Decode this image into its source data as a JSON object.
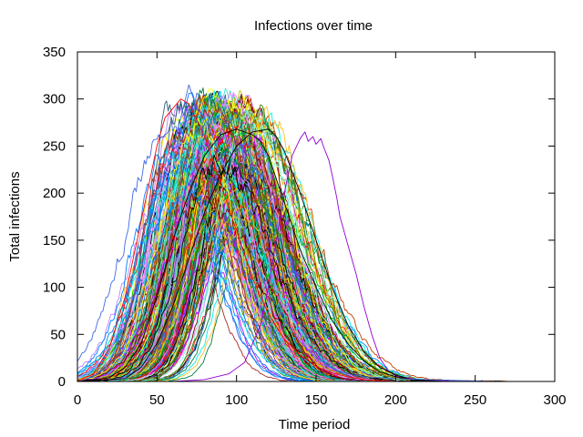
{
  "chart_data": {
    "type": "line",
    "title": "Infections over time",
    "xlabel": "Time period",
    "ylabel": "Total infections",
    "xlim": [
      0,
      300
    ],
    "ylim": [
      0,
      350
    ],
    "xticks": [
      0,
      50,
      100,
      150,
      200,
      250,
      300
    ],
    "yticks": [
      0,
      50,
      100,
      150,
      200,
      250,
      300,
      350
    ],
    "grid": false,
    "legend": "none",
    "palette": [
      "#ff0000",
      "#00c000",
      "#0080ff",
      "#c000ff",
      "#00eeee",
      "#c04000",
      "#c8c800",
      "#4169e1",
      "#ffc020",
      "#008040",
      "#c080ff",
      "#306080",
      "#8b0000",
      "#408000",
      "#ff80ff",
      "#7fffd4",
      "#a52a2a",
      "#ffff00",
      "#40e0d0",
      "#000000"
    ],
    "ensemble_summary": {
      "count": 320,
      "peak_time_range": [
        48,
        128
      ],
      "peak_value_range": [
        185,
        315
      ],
      "end_time_range": [
        150,
        275
      ]
    },
    "series": [
      {
        "name": "",
        "color": "#9400d3",
        "x": [
          0,
          60,
          80,
          95,
          105,
          115,
          120,
          125,
          130,
          135,
          140,
          143,
          145,
          148,
          150,
          153,
          155,
          158,
          160,
          163,
          165,
          170,
          175,
          180,
          185,
          190,
          195,
          200,
          210,
          220,
          240
        ],
        "y": [
          0,
          0,
          2,
          8,
          20,
          60,
          100,
          150,
          200,
          240,
          258,
          265,
          255,
          260,
          252,
          258,
          248,
          235,
          220,
          195,
          175,
          145,
          115,
          80,
          50,
          25,
          12,
          6,
          3,
          1,
          0
        ]
      },
      {
        "name": "",
        "color": "#000000",
        "x": [
          0,
          20,
          30,
          40,
          50,
          60,
          70,
          80,
          90,
          100,
          110,
          115,
          120,
          130,
          140,
          150,
          160,
          170,
          180,
          190,
          200,
          210,
          220,
          230
        ],
        "y": [
          0,
          4,
          15,
          40,
          90,
          150,
          200,
          240,
          262,
          268,
          262,
          255,
          240,
          190,
          140,
          100,
          65,
          40,
          22,
          10,
          5,
          2,
          1,
          0
        ]
      },
      {
        "name": "",
        "color": "#000000",
        "x": [
          0,
          30,
          40,
          50,
          60,
          70,
          80,
          90,
          100,
          110,
          120,
          125,
          130,
          140,
          150,
          160,
          170,
          180,
          190,
          200,
          210,
          220
        ],
        "y": [
          0,
          3,
          15,
          40,
          80,
          130,
          180,
          220,
          250,
          265,
          268,
          260,
          245,
          200,
          150,
          100,
          60,
          32,
          15,
          7,
          2,
          0
        ]
      },
      {
        "name": "",
        "color": "#4169e1",
        "x": [
          0,
          10,
          20,
          30,
          40,
          50,
          60,
          65,
          70,
          75,
          80,
          90,
          100,
          110,
          120,
          130,
          140,
          150,
          160,
          170,
          180,
          200,
          220,
          240,
          260
        ],
        "y": [
          0,
          5,
          20,
          60,
          120,
          190,
          250,
          280,
          315,
          290,
          280,
          240,
          185,
          135,
          95,
          65,
          42,
          25,
          14,
          8,
          5,
          3,
          2,
          1,
          0
        ]
      },
      {
        "name": "",
        "color": "#ff0000",
        "x": [
          0,
          10,
          20,
          30,
          40,
          50,
          55,
          60,
          65,
          70,
          80,
          90,
          100,
          110,
          120,
          130,
          140,
          150,
          160,
          170,
          180,
          190,
          200
        ],
        "y": [
          0,
          8,
          35,
          90,
          170,
          250,
          280,
          290,
          300,
          295,
          260,
          210,
          160,
          110,
          72,
          45,
          28,
          16,
          9,
          5,
          2,
          1,
          0
        ]
      }
    ]
  }
}
